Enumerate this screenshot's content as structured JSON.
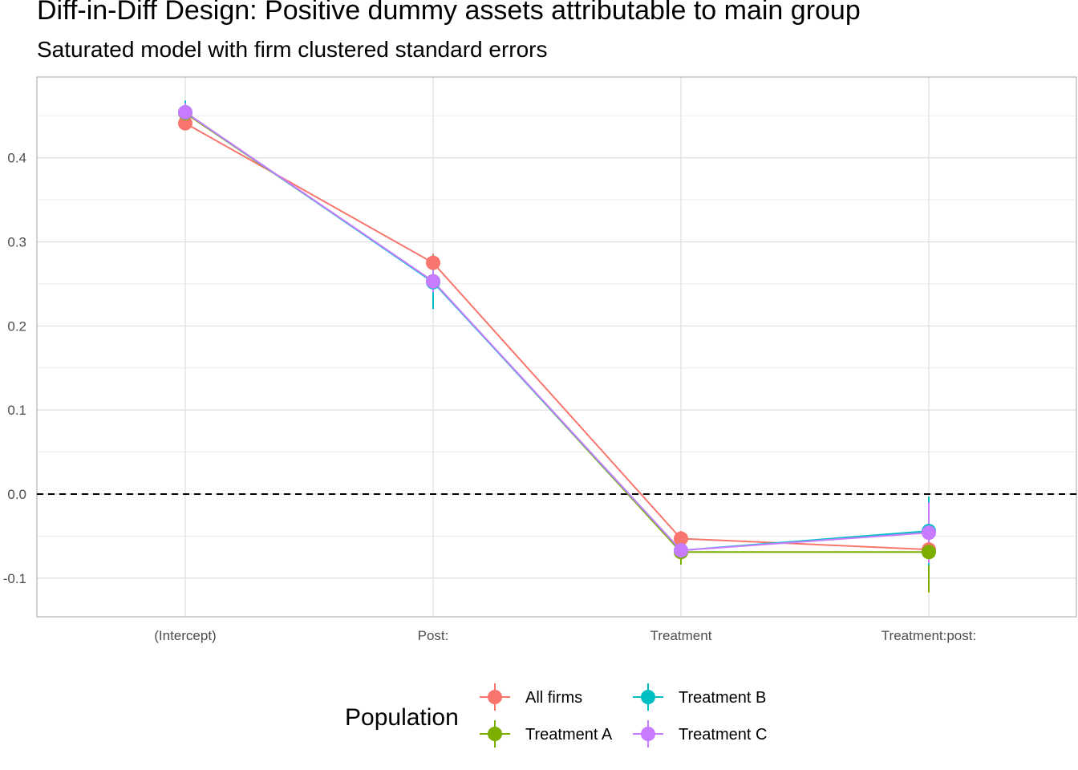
{
  "title": "Diff-in-Diff Design: Positive dummy assets attributable to main group",
  "subtitle": "Saturated model with firm clustered standard errors",
  "chart_data": {
    "type": "line",
    "title": "Diff-in-Diff Design: Positive dummy assets attributable to main group",
    "subtitle": "Saturated model with firm clustered standard errors",
    "xlabel": "",
    "ylabel": "",
    "categories": [
      "(Intercept)",
      "Post:",
      "Treatment",
      "Treatment:post:"
    ],
    "yticks": [
      -0.1,
      0.0,
      0.1,
      0.2,
      0.3,
      0.4
    ],
    "ytick_labels": [
      "-0.1",
      "0.0",
      "0.1",
      "0.2",
      "0.3",
      "0.4"
    ],
    "ylim": [
      -0.146,
      0.496
    ],
    "reference_line": 0.0,
    "grid": true,
    "legend": {
      "title": "Population",
      "position": "bottom"
    },
    "series": [
      {
        "name": "All firms",
        "color": "#F8766D",
        "values": [
          0.441,
          0.275,
          -0.053,
          -0.066
        ],
        "lower": [
          0.433,
          0.264,
          -0.062,
          -0.085
        ],
        "upper": [
          0.449,
          0.286,
          -0.044,
          -0.047
        ]
      },
      {
        "name": "Treatment A",
        "color": "#7CAE00",
        "values": [
          0.453,
          0.253,
          -0.069,
          -0.069
        ],
        "lower": [
          0.44,
          0.235,
          -0.084,
          -0.117
        ],
        "upper": [
          0.466,
          0.271,
          -0.054,
          -0.021
        ]
      },
      {
        "name": "Treatment B",
        "color": "#00BFC4",
        "values": [
          0.454,
          0.252,
          -0.067,
          -0.044
        ],
        "lower": [
          0.44,
          0.22,
          -0.074,
          -0.085
        ],
        "upper": [
          0.468,
          0.284,
          -0.06,
          -0.003
        ]
      },
      {
        "name": "Treatment C",
        "color": "#C77CFF",
        "values": [
          0.454,
          0.253,
          -0.067,
          -0.046
        ],
        "lower": [
          0.443,
          0.24,
          -0.074,
          -0.082
        ],
        "upper": [
          0.465,
          0.266,
          -0.06,
          -0.01
        ]
      }
    ]
  }
}
